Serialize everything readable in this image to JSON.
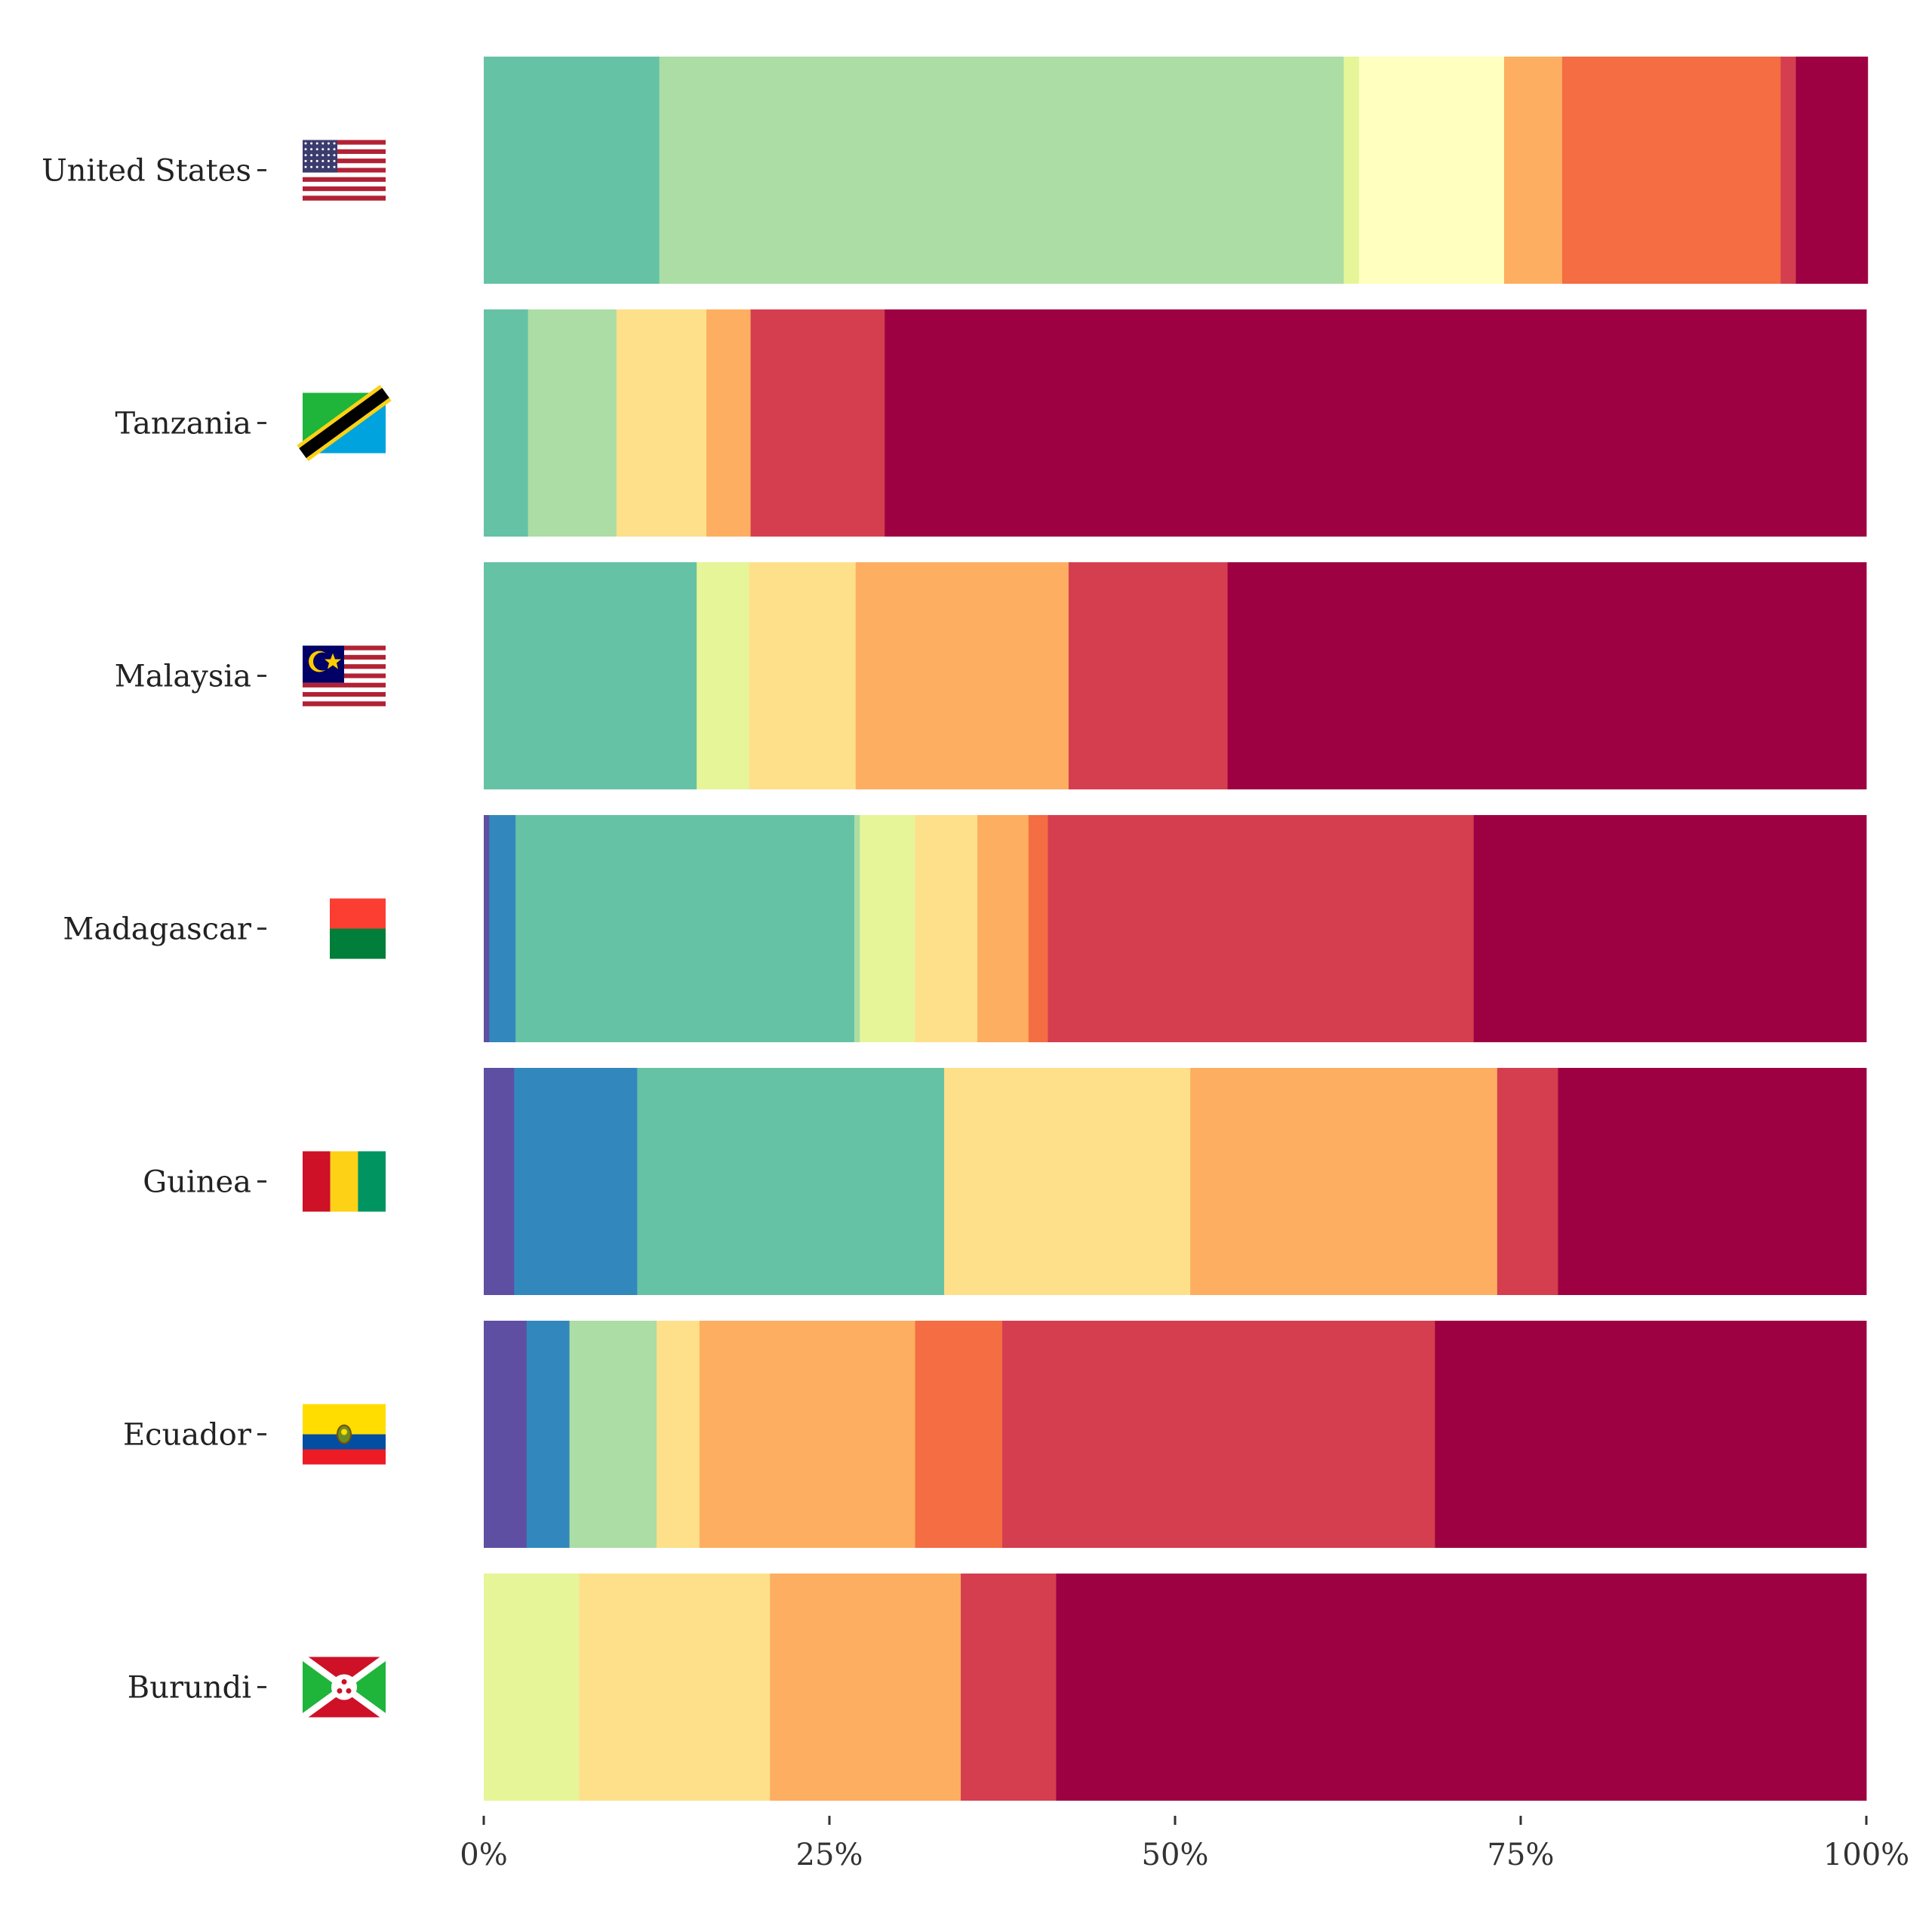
{
  "chart_data": {
    "type": "bar",
    "orientation": "horizontal",
    "stacked": true,
    "normalized": true,
    "title": "",
    "xlabel": "",
    "ylabel": "",
    "xlim": [
      0,
      100
    ],
    "x_ticks": [
      "0%",
      "25%",
      "50%",
      "75%",
      "100%"
    ],
    "x_tick_values": [
      0,
      25,
      50,
      75,
      100
    ],
    "grid": false,
    "legend": "none",
    "segment_colors": [
      "#5e4fa2",
      "#3288bd",
      "#66c2a5",
      "#abdda4",
      "#e6f598",
      "#ffffbf",
      "#fee08b",
      "#fdae61",
      "#f46d43",
      "#d53e4f",
      "#9e0142"
    ],
    "categories": [
      "United States",
      "Tanzania",
      "Malaysia",
      "Madagascar",
      "Guinea",
      "Ecuador",
      "Burundi"
    ],
    "flag_icons": [
      "flag-united-states-icon",
      "flag-tanzania-icon",
      "flag-malaysia-icon",
      "flag-madagascar-icon",
      "flag-guinea-icon",
      "flag-ecuador-icon",
      "flag-burundi-icon"
    ],
    "segments": [
      [
        0,
        0,
        12.7,
        49.5,
        1.1,
        10.5,
        0,
        4.2,
        15.8,
        1.1,
        5.2
      ],
      [
        0,
        0,
        3.2,
        6.4,
        0,
        0,
        6.5,
        3.2,
        0,
        9.7,
        71.0
      ],
      [
        0,
        0,
        15.4,
        0,
        3.8,
        0,
        7.7,
        15.4,
        0,
        11.5,
        46.2
      ],
      [
        0.4,
        1.9,
        24.5,
        0.4,
        4.0,
        0,
        4.5,
        3.7,
        1.4,
        30.8,
        28.4
      ],
      [
        2.2,
        8.9,
        22.2,
        0,
        0,
        0,
        17.8,
        22.2,
        0,
        4.4,
        22.3
      ],
      [
        3.1,
        3.1,
        0,
        6.3,
        0,
        0,
        3.1,
        15.6,
        6.3,
        31.3,
        31.2
      ],
      [
        0,
        0,
        0,
        0,
        6.9,
        0,
        13.8,
        13.8,
        0,
        6.9,
        58.6
      ]
    ]
  }
}
